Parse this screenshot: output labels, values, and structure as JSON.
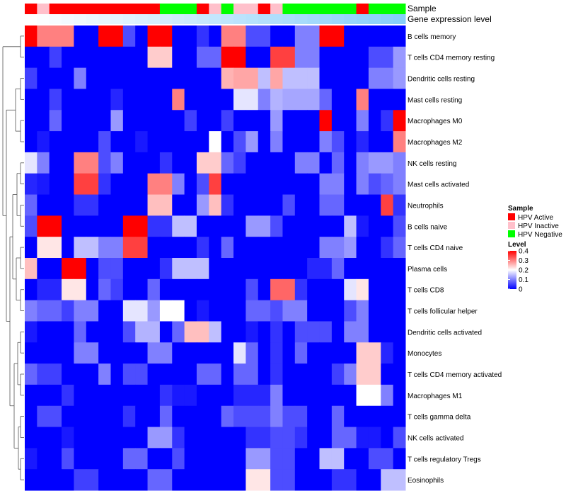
{
  "chart_data": {
    "type": "heatmap",
    "annotation_tracks": [
      {
        "name": "Sample",
        "values": [
          "HPV Active",
          "HPV Inactive",
          "HPV Active",
          "HPV Active",
          "HPV Active",
          "HPV Active",
          "HPV Active",
          "HPV Active",
          "HPV Active",
          "HPV Active",
          "HPV Active",
          "HPV Negative",
          "HPV Negative",
          "HPV Negative",
          "HPV Active",
          "HPV Inactive",
          "HPV Negative",
          "HPV Inactive",
          "HPV Inactive",
          "HPV Active",
          "HPV Inactive",
          "HPV Negative",
          "HPV Negative",
          "HPV Negative",
          "HPV Negative",
          "HPV Negative",
          "HPV Negative",
          "HPV Active",
          "HPV Negative",
          "HPV Negative",
          "HPV Negative"
        ]
      },
      {
        "name": "Gene expression level",
        "values": [
          0.0,
          0.03,
          0.07,
          0.1,
          0.13,
          0.17,
          0.2,
          0.23,
          0.27,
          0.3,
          0.33,
          0.37,
          0.4,
          0.43,
          0.47,
          0.5,
          0.53,
          0.57,
          0.6,
          0.63,
          0.67,
          0.7,
          0.73,
          0.77,
          0.8,
          0.83,
          0.87,
          0.9,
          0.93,
          0.97,
          1.0
        ]
      }
    ],
    "rows": [
      "B cells memory",
      "T cells CD4 memory resting",
      "Dendritic cells resting",
      "Mast cells resting",
      "Macrophages M0",
      "Macrophages M2",
      "NK cells resting",
      "Mast cells activated",
      "Neutrophils",
      "B cells naive",
      "T cells CD4 naive",
      "Plasma cells",
      "T cells CD8",
      "T cells follicular helper",
      "Dendritic cells activated",
      "Monocytes",
      "T cells CD4 memory activated",
      "Macrophages M1",
      "T cells gamma delta",
      "NK cells activated",
      "T cells regulatory  Tregs",
      "Eosinophils"
    ],
    "values": [
      [
        0.4,
        0.3,
        0.3,
        0.3,
        0.0,
        0.0,
        0.4,
        0.4,
        0.06,
        0.0,
        0.4,
        0.4,
        0.0,
        0.0,
        0.04,
        0.0,
        0.3,
        0.3,
        0.06,
        0.06,
        0.0,
        0.0,
        0.1,
        0.1,
        0.4,
        0.4,
        0.0,
        0.0,
        0.0,
        0.0,
        0.0
      ],
      [
        0.0,
        0.0,
        0.05,
        0.0,
        0.0,
        0.0,
        0.0,
        0.0,
        0.0,
        0.0,
        0.24,
        0.24,
        0.0,
        0.0,
        0.08,
        0.08,
        0.4,
        0.4,
        0.0,
        0.0,
        0.35,
        0.35,
        0.1,
        0.1,
        0.0,
        0.0,
        0.0,
        0.0,
        0.06,
        0.06,
        0.12
      ],
      [
        0.05,
        0.0,
        0.0,
        0.0,
        0.1,
        0.0,
        0.0,
        0.0,
        0.0,
        0.0,
        0.0,
        0.0,
        0.0,
        0.0,
        0.0,
        0.0,
        0.26,
        0.27,
        0.27,
        0.15,
        0.27,
        0.15,
        0.15,
        0.15,
        0.0,
        0.0,
        0.0,
        0.0,
        0.1,
        0.1,
        0.12
      ],
      [
        0.0,
        0.0,
        0.05,
        0.0,
        0.0,
        0.0,
        0.0,
        0.03,
        0.0,
        0.0,
        0.0,
        0.0,
        0.3,
        0.0,
        0.0,
        0.0,
        0.0,
        0.18,
        0.18,
        0.1,
        0.14,
        0.13,
        0.13,
        0.13,
        0.08,
        0.0,
        0.0,
        0.3,
        0.0,
        0.0,
        0.0
      ],
      [
        0.0,
        0.0,
        0.08,
        0.0,
        0.0,
        0.0,
        0.0,
        0.12,
        0.0,
        0.0,
        0.0,
        0.0,
        0.0,
        0.05,
        0.0,
        0.0,
        0.05,
        0.0,
        0.0,
        0.0,
        0.12,
        0.0,
        0.0,
        0.0,
        0.4,
        0.0,
        0.0,
        0.1,
        0.0,
        0.04,
        0.4
      ],
      [
        0.0,
        0.02,
        0.0,
        0.0,
        0.0,
        0.0,
        0.06,
        0.0,
        0.0,
        0.02,
        0.0,
        0.0,
        0.0,
        0.0,
        0.0,
        0.2,
        0.0,
        0.06,
        0.12,
        0.0,
        0.1,
        0.0,
        0.0,
        0.0,
        0.1,
        0.06,
        0.0,
        0.03,
        0.0,
        0.0,
        0.3
      ],
      [
        0.18,
        0.1,
        0.0,
        0.0,
        0.3,
        0.3,
        0.06,
        0.1,
        0.0,
        0.0,
        0.0,
        0.04,
        0.0,
        0.0,
        0.24,
        0.24,
        0.08,
        0.05,
        0.0,
        0.0,
        0.0,
        0.0,
        0.1,
        0.1,
        0.0,
        0.08,
        0.0,
        0.1,
        0.12,
        0.12,
        0.1
      ],
      [
        0.03,
        0.02,
        0.0,
        0.0,
        0.35,
        0.35,
        0.04,
        0.0,
        0.0,
        0.0,
        0.3,
        0.3,
        0.1,
        0.0,
        0.06,
        0.35,
        0.0,
        0.0,
        0.0,
        0.0,
        0.0,
        0.0,
        0.0,
        0.0,
        0.1,
        0.1,
        0.0,
        0.1,
        0.06,
        0.08,
        0.1
      ],
      [
        0.08,
        0.0,
        0.0,
        0.0,
        0.04,
        0.04,
        0.0,
        0.0,
        0.0,
        0.0,
        0.25,
        0.25,
        0.0,
        0.0,
        0.12,
        0.25,
        0.04,
        0.0,
        0.0,
        0.0,
        0.0,
        0.06,
        0.0,
        0.0,
        0.08,
        0.08,
        0.0,
        0.0,
        0.0,
        0.35,
        0.04
      ],
      [
        0.06,
        0.4,
        0.4,
        0.0,
        0.0,
        0.0,
        0.0,
        0.0,
        0.4,
        0.4,
        0.04,
        0.04,
        0.15,
        0.15,
        0.0,
        0.0,
        0.0,
        0.0,
        0.12,
        0.12,
        0.06,
        0.0,
        0.0,
        0.0,
        0.0,
        0.0,
        0.15,
        0.02,
        0.0,
        0.0,
        0.06
      ],
      [
        0.0,
        0.22,
        0.22,
        0.0,
        0.15,
        0.15,
        0.1,
        0.1,
        0.35,
        0.35,
        0.0,
        0.0,
        0.0,
        0.0,
        0.04,
        0.0,
        0.08,
        0.0,
        0.0,
        0.0,
        0.0,
        0.0,
        0.0,
        0.0,
        0.1,
        0.1,
        0.12,
        0.0,
        0.0,
        0.04,
        0.08
      ],
      [
        0.25,
        0.0,
        0.0,
        0.4,
        0.4,
        0.0,
        0.06,
        0.06,
        0.0,
        0.0,
        0.0,
        0.04,
        0.15,
        0.15,
        0.15,
        0.0,
        0.0,
        0.0,
        0.0,
        0.0,
        0.0,
        0.0,
        0.0,
        0.03,
        0.03,
        0.08,
        0.0,
        0.0,
        0.0,
        0.0,
        0.0
      ],
      [
        0.0,
        0.03,
        0.03,
        0.22,
        0.22,
        0.0,
        0.08,
        0.05,
        0.0,
        0.0,
        0.08,
        0.0,
        0.0,
        0.0,
        0.0,
        0.0,
        0.0,
        0.0,
        0.06,
        0.0,
        0.32,
        0.32,
        0.04,
        0.0,
        0.0,
        0.0,
        0.18,
        0.22,
        0.0,
        0.0,
        0.0
      ],
      [
        0.1,
        0.08,
        0.08,
        0.05,
        0.1,
        0.1,
        0.0,
        0.0,
        0.18,
        0.18,
        0.12,
        0.2,
        0.2,
        0.0,
        0.02,
        0.0,
        0.0,
        0.0,
        0.08,
        0.08,
        0.06,
        0.1,
        0.1,
        0.0,
        0.0,
        0.0,
        0.06,
        0.1,
        0.0,
        0.0,
        0.0
      ],
      [
        0.02,
        0.0,
        0.0,
        0.0,
        0.08,
        0.0,
        0.0,
        0.0,
        0.06,
        0.14,
        0.14,
        0.0,
        0.08,
        0.25,
        0.25,
        0.15,
        0.0,
        0.0,
        0.02,
        0.0,
        0.04,
        0.0,
        0.06,
        0.06,
        0.06,
        0.0,
        0.1,
        0.1,
        0.0,
        0.0,
        0.0
      ],
      [
        0.0,
        0.0,
        0.0,
        0.0,
        0.1,
        0.1,
        0.0,
        0.0,
        0.0,
        0.0,
        0.1,
        0.1,
        0.0,
        0.0,
        0.0,
        0.0,
        0.0,
        0.18,
        0.08,
        0.0,
        0.04,
        0.0,
        0.08,
        0.0,
        0.0,
        0.0,
        0.0,
        0.24,
        0.24,
        0.03,
        0.0
      ],
      [
        0.08,
        0.05,
        0.05,
        0.0,
        0.0,
        0.0,
        0.1,
        0.0,
        0.06,
        0.06,
        0.0,
        0.0,
        0.0,
        0.0,
        0.08,
        0.08,
        0.0,
        0.08,
        0.08,
        0.0,
        0.04,
        0.0,
        0.0,
        0.0,
        0.0,
        0.05,
        0.1,
        0.24,
        0.24,
        0.0,
        0.0
      ],
      [
        0.0,
        0.0,
        0.0,
        0.04,
        0.0,
        0.0,
        0.0,
        0.0,
        0.0,
        0.0,
        0.0,
        0.04,
        0.02,
        0.02,
        0.0,
        0.0,
        0.0,
        0.03,
        0.03,
        0.03,
        0.1,
        0.0,
        0.0,
        0.0,
        0.0,
        0.0,
        0.0,
        0.2,
        0.2,
        0.1,
        0.0
      ],
      [
        0.0,
        0.06,
        0.06,
        0.0,
        0.0,
        0.0,
        0.0,
        0.0,
        0.04,
        0.0,
        0.0,
        0.08,
        0.0,
        0.0,
        0.0,
        0.0,
        0.08,
        0.06,
        0.06,
        0.06,
        0.1,
        0.06,
        0.06,
        0.0,
        0.0,
        0.08,
        0.0,
        0.0,
        0.0,
        0.0,
        0.0
      ],
      [
        0.0,
        0.0,
        0.0,
        0.02,
        0.0,
        0.0,
        0.0,
        0.0,
        0.0,
        0.0,
        0.12,
        0.12,
        0.04,
        0.0,
        0.0,
        0.0,
        0.0,
        0.0,
        0.04,
        0.04,
        0.06,
        0.06,
        0.04,
        0.0,
        0.0,
        0.08,
        0.08,
        0.02,
        0.02,
        0.0,
        0.06
      ],
      [
        0.02,
        0.0,
        0.0,
        0.06,
        0.0,
        0.0,
        0.0,
        0.0,
        0.08,
        0.08,
        0.0,
        0.0,
        0.06,
        0.0,
        0.0,
        0.0,
        0.0,
        0.0,
        0.12,
        0.12,
        0.06,
        0.06,
        0.0,
        0.0,
        0.15,
        0.15,
        0.0,
        0.0,
        0.06,
        0.06,
        0.0
      ],
      [
        0.0,
        0.0,
        0.0,
        0.0,
        0.05,
        0.05,
        0.0,
        0.0,
        0.0,
        0.0,
        0.08,
        0.08,
        0.0,
        0.0,
        0.0,
        0.0,
        0.0,
        0.0,
        0.22,
        0.22,
        0.06,
        0.06,
        0.0,
        0.0,
        0.0,
        0.04,
        0.04,
        0.0,
        0.0,
        0.15,
        0.15
      ]
    ],
    "scale": {
      "min": 0,
      "mid": 0.2,
      "max": 0.4,
      "low_color": "#0000ff",
      "mid_color": "#ffffff",
      "high_color": "#ff0000"
    },
    "gene_expression_colors": [
      "#ffffff",
      "#87cefa"
    ]
  },
  "legend": {
    "sample_title": "Sample",
    "sample_entries": [
      {
        "label": "HPV Active",
        "color": "#ff0000"
      },
      {
        "label": "HPV Inactive",
        "color": "#ffc0cb"
      },
      {
        "label": "HPV Negative",
        "color": "#00ff00"
      }
    ],
    "level_title": "Level",
    "level_ticks": [
      "0.4",
      "0.3",
      "0.2",
      "0.1",
      "0"
    ],
    "level_tick_values": [
      0.4,
      0.3,
      0.2,
      0.1,
      0
    ]
  }
}
